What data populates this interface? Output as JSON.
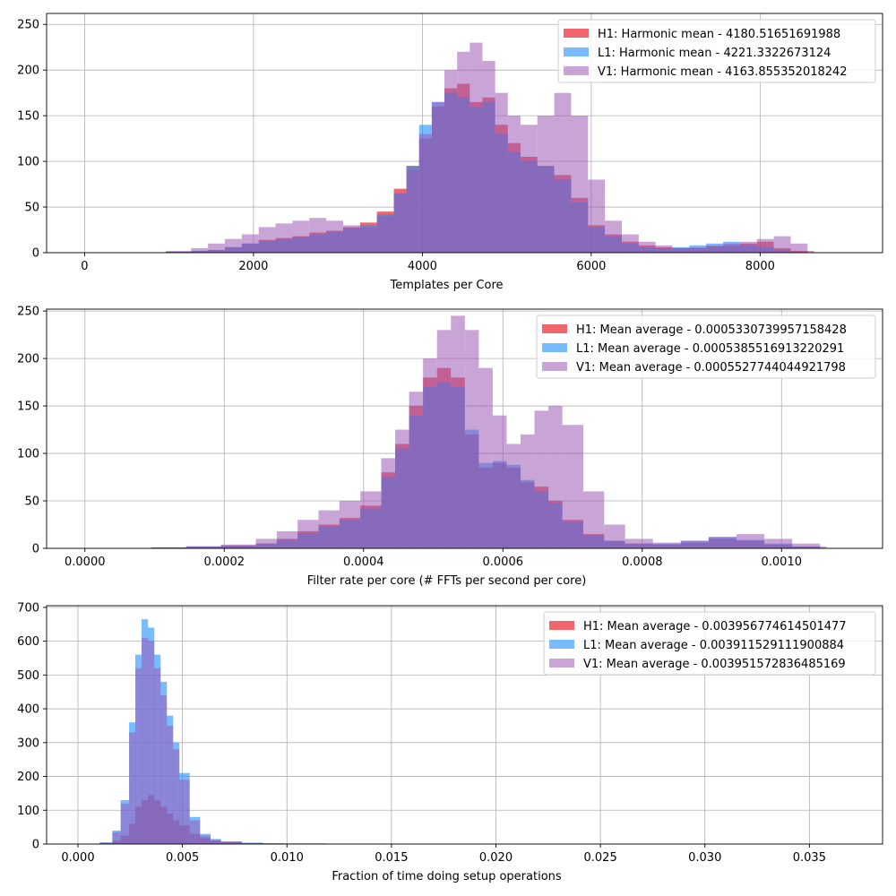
{
  "chart_data": [
    {
      "type": "histogram",
      "xlabel": "Templates per Core",
      "ylabel": "",
      "xlim": [
        -450,
        9450
      ],
      "ylim": [
        0,
        262
      ],
      "xticks": [
        0,
        2000,
        4000,
        6000,
        8000
      ],
      "xtick_labels": [
        "0",
        "2000",
        "4000",
        "6000",
        "8000"
      ],
      "yticks": [
        0,
        50,
        100,
        150,
        200,
        250
      ],
      "ytick_labels": [
        "0",
        "50",
        "100",
        "150",
        "200",
        "250"
      ],
      "grid": true,
      "legend_position": "upper-right",
      "series": [
        {
          "name": "H1: Harmonic mean  - 4180.51651691988",
          "color": "#e8000b",
          "x": [
            0,
            500,
            1000,
            1300,
            1500,
            1700,
            1900,
            2100,
            2300,
            2500,
            2700,
            2900,
            3100,
            3300,
            3500,
            3700,
            3850,
            4000,
            4150,
            4300,
            4450,
            4600,
            4750,
            4900,
            5050,
            5200,
            5400,
            5600,
            5800,
            6000,
            6200,
            6400,
            6600,
            6800,
            7000,
            7200,
            7400,
            7600,
            7800,
            8000,
            8200,
            8400,
            8600
          ],
          "y": [
            0,
            0,
            1,
            2,
            3,
            6,
            10,
            14,
            16,
            18,
            22,
            24,
            28,
            33,
            45,
            70,
            95,
            125,
            160,
            180,
            185,
            165,
            170,
            140,
            120,
            105,
            95,
            85,
            60,
            30,
            20,
            12,
            8,
            6,
            5,
            5,
            7,
            8,
            10,
            12,
            5,
            2,
            0
          ]
        },
        {
          "name": "L1: Harmonic mean  - 4221.3322673124",
          "color": "#1e90ff",
          "x": [
            0,
            500,
            1000,
            1300,
            1500,
            1700,
            1900,
            2100,
            2300,
            2500,
            2700,
            2900,
            3100,
            3300,
            3500,
            3700,
            3850,
            4000,
            4150,
            4300,
            4450,
            4600,
            4750,
            4900,
            5050,
            5200,
            5400,
            5600,
            5800,
            6000,
            6200,
            6400,
            6600,
            6800,
            7000,
            7200,
            7400,
            7600,
            7800,
            8000,
            8200,
            8400,
            8600
          ],
          "y": [
            0,
            0,
            1,
            2,
            3,
            6,
            10,
            13,
            15,
            17,
            20,
            23,
            27,
            30,
            42,
            65,
            95,
            140,
            165,
            175,
            170,
            160,
            165,
            130,
            110,
            100,
            95,
            80,
            55,
            28,
            18,
            10,
            6,
            5,
            6,
            8,
            10,
            12,
            8,
            6,
            3,
            1,
            0
          ]
        },
        {
          "name": "V1: Harmonic mean  - 4163.855352018242",
          "color": "#9b59b6",
          "x": [
            0,
            500,
            1000,
            1300,
            1500,
            1700,
            1900,
            2100,
            2300,
            2500,
            2700,
            2900,
            3100,
            3300,
            3500,
            3700,
            3850,
            4000,
            4150,
            4300,
            4450,
            4600,
            4750,
            4900,
            5050,
            5200,
            5400,
            5600,
            5800,
            6000,
            6200,
            6400,
            6600,
            6800,
            7000,
            7200,
            7400,
            7600,
            7800,
            8000,
            8200,
            8400,
            8600
          ],
          "y": [
            0,
            0,
            2,
            5,
            10,
            15,
            20,
            28,
            32,
            35,
            38,
            35,
            30,
            28,
            40,
            65,
            90,
            130,
            165,
            200,
            220,
            230,
            210,
            175,
            150,
            140,
            150,
            175,
            150,
            80,
            35,
            20,
            12,
            8,
            5,
            6,
            8,
            10,
            12,
            15,
            18,
            10,
            2
          ]
        }
      ]
    },
    {
      "type": "histogram",
      "xlabel": "Filter rate per core (# FFTs per second per core)",
      "ylabel": "",
      "xlim": [
        -5.5e-05,
        0.001145
      ],
      "ylim": [
        0,
        252
      ],
      "xticks": [
        0,
        0.0002,
        0.0004,
        0.0006,
        0.0008,
        0.001
      ],
      "xtick_labels": [
        "0.0000",
        "0.0002",
        "0.0004",
        "0.0006",
        "0.0008",
        "0.0010"
      ],
      "yticks": [
        0,
        50,
        100,
        150,
        200,
        250
      ],
      "ytick_labels": [
        "0",
        "50",
        "100",
        "150",
        "200",
        "250"
      ],
      "grid": true,
      "legend_position": "upper-right",
      "series": [
        {
          "name": "H1: Mean average - 0.0005330739957158428",
          "color": "#e8000b",
          "x": [
            0.0,
            0.0001,
            0.00015,
            0.0002,
            0.00025,
            0.00028,
            0.00031,
            0.00034,
            0.00037,
            0.0004,
            0.00043,
            0.00045,
            0.00047,
            0.00049,
            0.00051,
            0.00053,
            0.00055,
            0.00057,
            0.00059,
            0.00061,
            0.00063,
            0.00065,
            0.00067,
            0.00069,
            0.00072,
            0.00075,
            0.00078,
            0.00082,
            0.00086,
            0.0009,
            0.00094,
            0.00098,
            0.00102,
            0.00106
          ],
          "y": [
            0,
            1,
            2,
            3,
            5,
            10,
            18,
            25,
            32,
            45,
            80,
            110,
            150,
            180,
            190,
            180,
            120,
            85,
            90,
            85,
            70,
            65,
            50,
            30,
            15,
            8,
            5,
            4,
            6,
            10,
            8,
            4,
            2,
            0
          ]
        },
        {
          "name": "L1: Mean average - 0.0005385516913220291",
          "color": "#1e90ff",
          "x": [
            0.0,
            0.0001,
            0.00015,
            0.0002,
            0.00025,
            0.00028,
            0.00031,
            0.00034,
            0.00037,
            0.0004,
            0.00043,
            0.00045,
            0.00047,
            0.00049,
            0.00051,
            0.00053,
            0.00055,
            0.00057,
            0.00059,
            0.00061,
            0.00063,
            0.00065,
            0.00067,
            0.00069,
            0.00072,
            0.00075,
            0.00078,
            0.00082,
            0.00086,
            0.0009,
            0.00094,
            0.00098,
            0.00102,
            0.00106
          ],
          "y": [
            0,
            1,
            2,
            3,
            5,
            9,
            16,
            23,
            30,
            42,
            75,
            105,
            140,
            170,
            175,
            170,
            125,
            90,
            92,
            88,
            72,
            60,
            48,
            28,
            14,
            8,
            5,
            5,
            8,
            12,
            9,
            5,
            2,
            0
          ]
        },
        {
          "name": "V1: Mean average - 0.0005527744044921798",
          "color": "#9b59b6",
          "x": [
            0.0,
            0.0001,
            0.00015,
            0.0002,
            0.00025,
            0.00028,
            0.00031,
            0.00034,
            0.00037,
            0.0004,
            0.00043,
            0.00045,
            0.00047,
            0.00049,
            0.00051,
            0.00053,
            0.00055,
            0.00057,
            0.00059,
            0.00061,
            0.00063,
            0.00065,
            0.00067,
            0.00069,
            0.00072,
            0.00075,
            0.00078,
            0.00082,
            0.00086,
            0.0009,
            0.00094,
            0.00098,
            0.00102,
            0.00106
          ],
          "y": [
            0,
            1,
            2,
            4,
            10,
            18,
            30,
            40,
            50,
            60,
            95,
            125,
            165,
            200,
            230,
            245,
            230,
            190,
            140,
            110,
            120,
            145,
            150,
            130,
            60,
            25,
            10,
            6,
            8,
            12,
            15,
            10,
            5,
            2
          ]
        }
      ]
    },
    {
      "type": "histogram",
      "xlabel": "Fraction of time doing setup operations",
      "ylabel": "",
      "xlim": [
        -0.0015,
        0.0385
      ],
      "ylim": [
        0,
        705
      ],
      "xticks": [
        0,
        0.005,
        0.01,
        0.015,
        0.02,
        0.025,
        0.03,
        0.035
      ],
      "xtick_labels": [
        "0.000",
        "0.005",
        "0.010",
        "0.015",
        "0.020",
        "0.025",
        "0.030",
        "0.035"
      ],
      "yticks": [
        0,
        100,
        200,
        300,
        400,
        500,
        600,
        700
      ],
      "ytick_labels": [
        "0",
        "100",
        "200",
        "300",
        "400",
        "500",
        "600",
        "700"
      ],
      "grid": true,
      "legend_position": "upper-right",
      "series": [
        {
          "name": "H1: Mean average - 0.003956774614501477",
          "color": "#e8000b",
          "x": [
            0.0012,
            0.0018,
            0.0022,
            0.0026,
            0.0029,
            0.0032,
            0.0035,
            0.0038,
            0.0041,
            0.0044,
            0.0047,
            0.005,
            0.0055,
            0.006,
            0.0065,
            0.007,
            0.008,
            0.009,
            0.01,
            0.012,
            0.015,
            0.02,
            0.025,
            0.03,
            0.036
          ],
          "y": [
            3,
            10,
            25,
            60,
            110,
            130,
            145,
            130,
            110,
            90,
            70,
            55,
            30,
            18,
            10,
            6,
            3,
            2,
            1,
            1,
            0,
            0,
            0,
            0,
            1
          ]
        },
        {
          "name": "L1: Mean average - 0.003911529111900884",
          "color": "#1e90ff",
          "x": [
            0.0012,
            0.0018,
            0.0022,
            0.0026,
            0.0029,
            0.0032,
            0.0035,
            0.0038,
            0.0041,
            0.0044,
            0.0047,
            0.005,
            0.0055,
            0.006,
            0.0065,
            0.007,
            0.008,
            0.009,
            0.01,
            0.012,
            0.015,
            0.02,
            0.025,
            0.03,
            0.036
          ],
          "y": [
            5,
            40,
            130,
            360,
            560,
            665,
            640,
            560,
            480,
            380,
            300,
            210,
            80,
            30,
            15,
            8,
            4,
            2,
            2,
            1,
            1,
            0,
            0,
            0,
            1
          ]
        },
        {
          "name": "V1: Mean average - 0.003951572836485169",
          "color": "#9b59b6",
          "x": [
            0.0012,
            0.0018,
            0.0022,
            0.0026,
            0.0029,
            0.0032,
            0.0035,
            0.0038,
            0.0041,
            0.0044,
            0.0047,
            0.005,
            0.0055,
            0.006,
            0.0065,
            0.007,
            0.008,
            0.009,
            0.01,
            0.012,
            0.015,
            0.02,
            0.025,
            0.03,
            0.036
          ],
          "y": [
            4,
            35,
            120,
            330,
            520,
            610,
            600,
            520,
            440,
            350,
            280,
            190,
            70,
            25,
            12,
            7,
            3,
            2,
            1,
            1,
            0,
            0,
            0,
            0,
            0
          ]
        }
      ]
    }
  ]
}
